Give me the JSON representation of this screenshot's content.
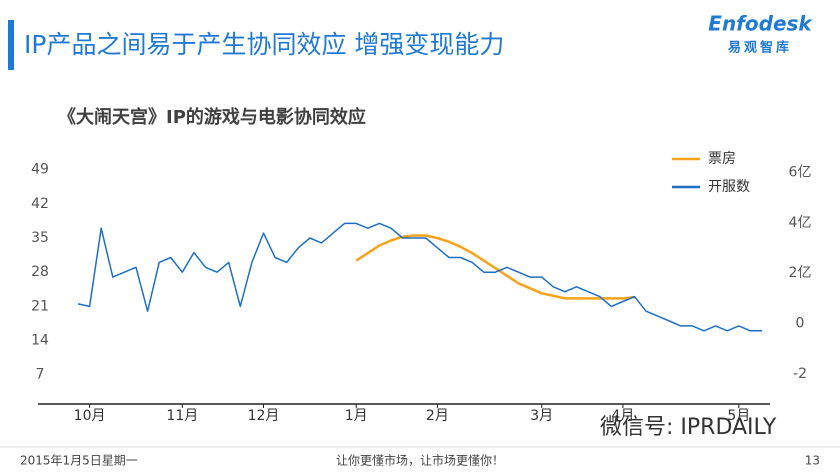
{
  "header": {
    "title": "IP产品之间易于产生协同效应 增强变现能力",
    "logo": "Enfodesk",
    "logo_sub": "易观智库"
  },
  "chart_data": {
    "type": "line",
    "title": "《大闹天宫》IP的游戏与电影协同效应",
    "categories": [
      null,
      "10月",
      null,
      null,
      null,
      null,
      null,
      null,
      null,
      "11月",
      null,
      null,
      null,
      null,
      null,
      null,
      "12月",
      null,
      null,
      null,
      null,
      null,
      null,
      null,
      "1月",
      null,
      null,
      null,
      null,
      null,
      null,
      "2月",
      null,
      null,
      null,
      null,
      null,
      null,
      null,
      null,
      "3月",
      null,
      null,
      null,
      null,
      null,
      null,
      "4月",
      null,
      null,
      null,
      null,
      null,
      null,
      null,
      null,
      null,
      "5月",
      null,
      null
    ],
    "series": [
      {
        "name": "票房",
        "color": "#f5a31a",
        "axis": "y2",
        "values": [
          null,
          null,
          null,
          null,
          null,
          null,
          null,
          null,
          null,
          null,
          null,
          null,
          null,
          null,
          null,
          null,
          null,
          null,
          null,
          null,
          null,
          null,
          null,
          null,
          2.5,
          2.8,
          3.1,
          3.3,
          3.45,
          3.5,
          3.5,
          3.4,
          3.25,
          3.05,
          2.8,
          2.5,
          2.2,
          1.9,
          1.6,
          1.4,
          1.2,
          1.1,
          1.0,
          1.0,
          1.0,
          1.0,
          1.0,
          1.0,
          1.05,
          null,
          null,
          null,
          null,
          null,
          null,
          null,
          null,
          null,
          null,
          null
        ]
      },
      {
        "name": "开服数",
        "color": "#1f6fc5",
        "values": [
          21.5,
          21,
          37,
          27,
          28,
          29,
          20,
          30,
          31,
          28,
          32,
          29,
          28,
          30,
          21,
          30,
          36,
          31,
          30,
          33,
          35,
          34,
          36,
          38,
          38,
          37,
          38,
          37,
          35,
          35,
          35,
          33,
          31,
          31,
          30,
          28,
          28,
          29,
          28,
          27,
          27,
          25,
          24,
          25,
          24,
          23,
          21,
          22,
          23,
          20,
          19,
          18,
          17,
          17,
          16,
          17,
          16,
          17,
          16,
          16
        ]
      }
    ],
    "ylim": [
      1,
      52
    ],
    "yticks": [
      7,
      14,
      21,
      28,
      35,
      42,
      49
    ],
    "y2lim": [
      -3.2,
      6.7
    ],
    "y2ticks": [
      -2,
      0,
      {
        "value": 2,
        "label": "2亿"
      },
      {
        "value": 4,
        "label": "4亿"
      },
      {
        "value": 6,
        "label": "6亿"
      }
    ],
    "legend": "top-right"
  },
  "footer": {
    "date": "2015年1月5日星期一",
    "slogan": "让你更懂市场，让市场更懂你！",
    "page": "13"
  },
  "watermark": "微信号: IPRDAILY"
}
